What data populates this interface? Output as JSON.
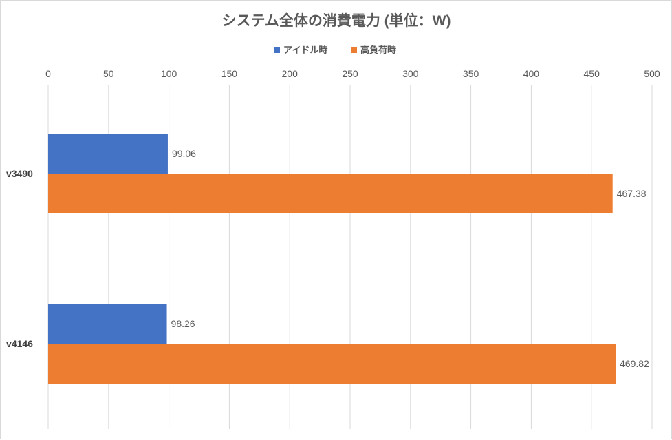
{
  "chart_data": {
    "type": "bar",
    "orientation": "horizontal",
    "title": "システム全体の消費電力 (単位：W)",
    "categories": [
      "v3490",
      "v4146"
    ],
    "series": [
      {
        "name": "アイドル時",
        "color": "#4472c4",
        "values": [
          99.06,
          98.26
        ]
      },
      {
        "name": "高負荷時",
        "color": "#ed7d31",
        "values": [
          467.38,
          469.82
        ]
      }
    ],
    "xlim": [
      0,
      500
    ],
    "xticks": [
      0,
      50,
      100,
      150,
      200,
      250,
      300,
      350,
      400,
      450,
      500
    ],
    "x_axis_position": "top",
    "legend_position": "top",
    "grid": true,
    "data_labels": [
      "99.06",
      "467.38",
      "98.26",
      "469.82"
    ],
    "tick_labels": [
      "0",
      "50",
      "100",
      "150",
      "200",
      "250",
      "300",
      "350",
      "400",
      "450",
      "500"
    ]
  }
}
